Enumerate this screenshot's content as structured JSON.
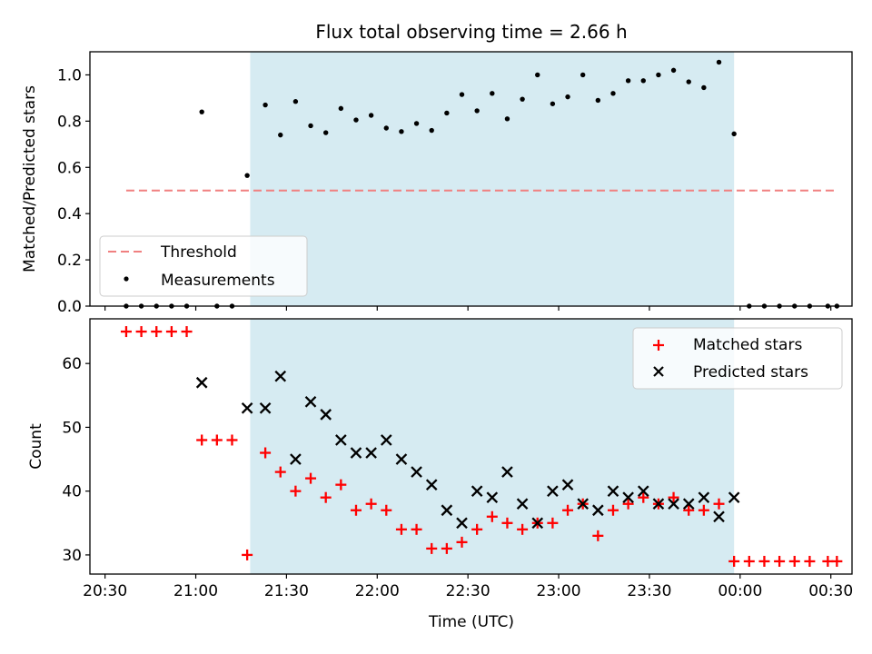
{
  "title": "Flux total observing time = 2.66 h",
  "colors": {
    "shade": "#add8e6",
    "threshold": "#f08080",
    "matched": "#ff0000",
    "predicted": "#000000",
    "measurement": "#000000"
  },
  "chart_data": [
    {
      "type": "scatter",
      "panel": "top",
      "ylabel": "Matched/Predicted stars",
      "xlabel": "",
      "xlim": [
        "20:25",
        "00:37"
      ],
      "ylim": [
        0,
        1.1
      ],
      "yticks": [
        "0.0",
        "0.2",
        "0.4",
        "0.6",
        "0.8",
        "1.0"
      ],
      "shaded_span": [
        "21:18",
        "23:58"
      ],
      "legend_loc": "lower-left",
      "threshold": {
        "name": "Threshold",
        "y": 0.5,
        "x": [
          "20:37",
          "00:32"
        ],
        "style": "dashed"
      },
      "series": [
        {
          "name": "Measurements",
          "x": [
            "20:37",
            "20:42",
            "20:47",
            "20:52",
            "20:57",
            "21:02",
            "21:07",
            "21:12",
            "21:17",
            "21:23",
            "21:28",
            "21:33",
            "21:38",
            "21:43",
            "21:48",
            "21:53",
            "21:58",
            "22:03",
            "22:08",
            "22:13",
            "22:18",
            "22:23",
            "22:28",
            "22:33",
            "22:38",
            "22:43",
            "22:48",
            "22:53",
            "22:58",
            "23:03",
            "23:08",
            "23:13",
            "23:18",
            "23:23",
            "23:28",
            "23:33",
            "23:38",
            "23:43",
            "23:48",
            "23:53",
            "23:58",
            "00:03",
            "00:08",
            "00:13",
            "00:18",
            "00:23",
            "00:29",
            "00:32"
          ],
          "y": [
            0,
            0,
            0,
            0,
            0,
            0.84,
            0,
            0,
            0.565,
            0.87,
            0.74,
            0.885,
            0.78,
            0.75,
            0.855,
            0.805,
            0.825,
            0.77,
            0.755,
            0.79,
            0.76,
            0.835,
            0.915,
            0.845,
            0.92,
            0.81,
            0.895,
            1.0,
            0.875,
            0.905,
            1.0,
            0.89,
            0.92,
            0.975,
            0.975,
            1.0,
            1.02,
            0.97,
            0.945,
            1.055,
            0.745,
            0,
            0,
            0,
            0,
            0,
            0,
            0
          ]
        }
      ]
    },
    {
      "type": "scatter",
      "panel": "bottom",
      "ylabel": "Count",
      "xlabel": "Time (UTC)",
      "xlim": [
        "20:25",
        "00:37"
      ],
      "ylim": [
        27,
        67
      ],
      "yticks": [
        "30",
        "40",
        "50",
        "60"
      ],
      "xticks": [
        "20:30",
        "21:00",
        "21:30",
        "22:00",
        "22:30",
        "23:00",
        "23:30",
        "00:00",
        "00:30"
      ],
      "shaded_span": [
        "21:18",
        "23:58"
      ],
      "legend_loc": "upper-right",
      "series": [
        {
          "name": "Matched stars",
          "marker": "plus",
          "x": [
            "20:37",
            "20:42",
            "20:47",
            "20:52",
            "20:57",
            "21:02",
            "21:07",
            "21:12",
            "21:17",
            "21:23",
            "21:28",
            "21:33",
            "21:38",
            "21:43",
            "21:48",
            "21:53",
            "21:58",
            "22:03",
            "22:08",
            "22:13",
            "22:18",
            "22:23",
            "22:28",
            "22:33",
            "22:38",
            "22:43",
            "22:48",
            "22:53",
            "22:58",
            "23:03",
            "23:08",
            "23:13",
            "23:18",
            "23:23",
            "23:28",
            "23:33",
            "23:38",
            "23:43",
            "23:48",
            "23:53",
            "23:58",
            "00:03",
            "00:08",
            "00:13",
            "00:18",
            "00:23",
            "00:29",
            "00:32"
          ],
          "y": [
            65,
            65,
            65,
            65,
            65,
            48,
            48,
            48,
            30,
            46,
            43,
            40,
            42,
            39,
            41,
            37,
            38,
            37,
            34,
            34,
            31,
            31,
            32,
            34,
            36,
            35,
            34,
            35,
            35,
            37,
            38,
            33,
            37,
            38,
            39,
            38,
            39,
            37,
            37,
            38,
            29,
            29,
            29,
            29,
            29,
            29,
            29,
            29
          ]
        },
        {
          "name": "Predicted stars",
          "marker": "x",
          "x": [
            "21:02",
            "21:17",
            "21:23",
            "21:28",
            "21:33",
            "21:38",
            "21:43",
            "21:48",
            "21:53",
            "21:58",
            "22:03",
            "22:08",
            "22:13",
            "22:18",
            "22:23",
            "22:28",
            "22:33",
            "22:38",
            "22:43",
            "22:48",
            "22:53",
            "22:58",
            "23:03",
            "23:08",
            "23:13",
            "23:18",
            "23:23",
            "23:28",
            "23:33",
            "23:38",
            "23:43",
            "23:48",
            "23:53",
            "23:58"
          ],
          "y": [
            57,
            53,
            53,
            58,
            45,
            54,
            52,
            48,
            46,
            46,
            48,
            45,
            43,
            41,
            37,
            35,
            40,
            39,
            43,
            38,
            35,
            40,
            41,
            38,
            37,
            40,
            39,
            40,
            38,
            38,
            38,
            39,
            36,
            39
          ]
        }
      ]
    }
  ]
}
